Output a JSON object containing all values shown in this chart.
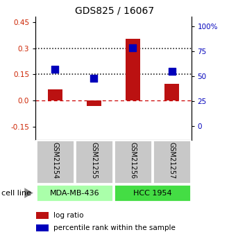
{
  "title": "GDS825 / 16067",
  "samples": [
    "GSM21254",
    "GSM21255",
    "GSM21256",
    "GSM21257"
  ],
  "log_ratio": [
    0.065,
    -0.03,
    0.355,
    0.095
  ],
  "percentile_rank": [
    57,
    48,
    79,
    55
  ],
  "cell_lines": [
    {
      "label": "MDA-MB-436",
      "samples": [
        0,
        1
      ],
      "color": "#aaffaa"
    },
    {
      "label": "HCC 1954",
      "samples": [
        2,
        3
      ],
      "color": "#44dd44"
    }
  ],
  "left_yticks": [
    -0.15,
    0.0,
    0.15,
    0.3,
    0.45
  ],
  "right_yticks": [
    0,
    25,
    50,
    75,
    100
  ],
  "ylim_left": [
    -0.225,
    0.48
  ],
  "ylim_right": [
    -14.0625,
    110
  ],
  "hline_y": [
    0.0,
    0.15,
    0.3
  ],
  "hline_styles": [
    "dashed",
    "dotted",
    "dotted"
  ],
  "hline_colors": [
    "#cc0000",
    "black",
    "black"
  ],
  "bar_color": "#bb1111",
  "dot_color": "#0000bb",
  "bar_width": 0.38,
  "dot_size": 55,
  "legend_items": [
    "log ratio",
    "percentile rank within the sample"
  ],
  "cell_line_row_label": "cell line",
  "background_color": "#ffffff",
  "plot_bg": "#ffffff",
  "tick_label_color_left": "#cc2200",
  "tick_label_color_right": "#0000bb",
  "title_fontsize": 10,
  "tick_fontsize": 7.5,
  "sample_label_fontsize": 7,
  "cell_line_fontsize": 8,
  "legend_fontsize": 7.5,
  "sample_box_color": "#c8c8c8",
  "sample_box_edge": "#ffffff"
}
